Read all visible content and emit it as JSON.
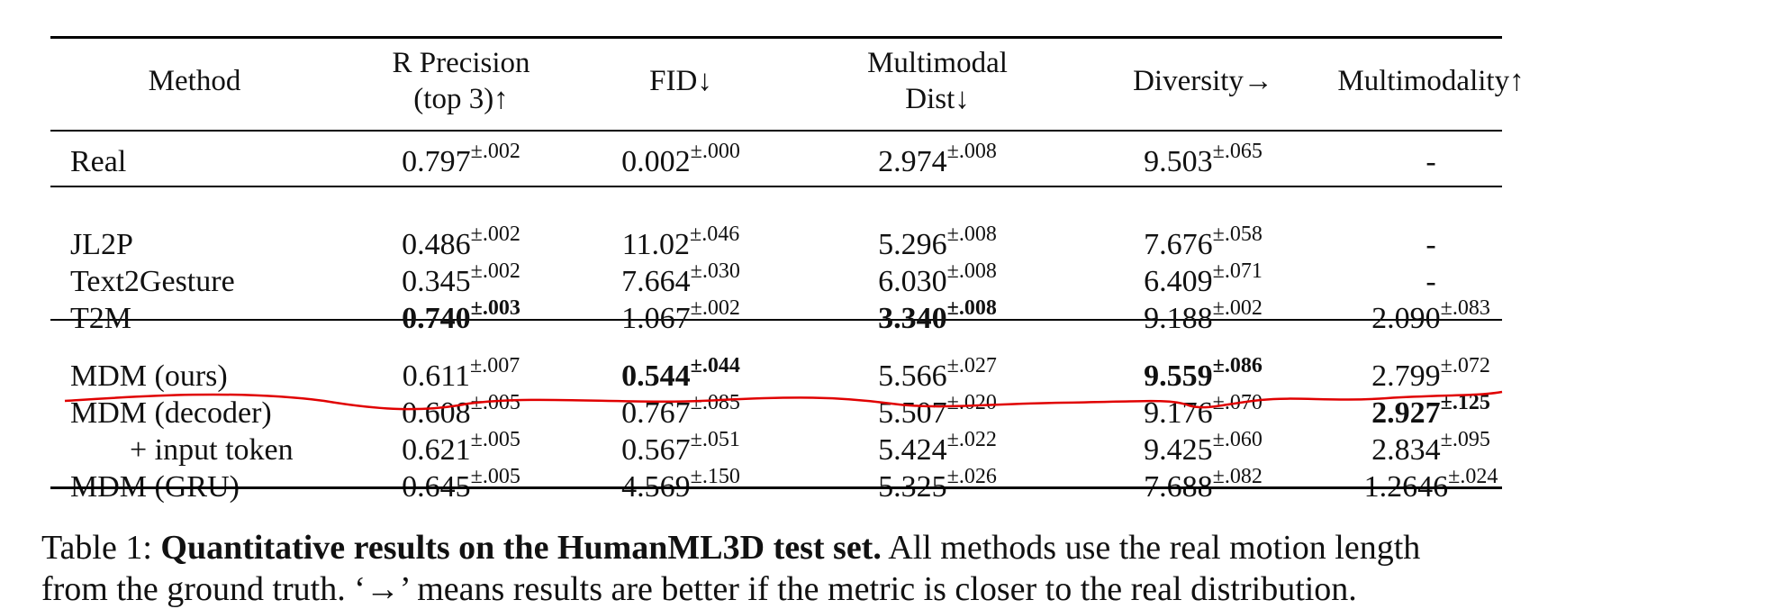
{
  "table": {
    "headers": [
      {
        "line1": "Method",
        "line2": ""
      },
      {
        "line1": "R Precision",
        "line2": "(top 3)↑"
      },
      {
        "line1": "FID↓",
        "line2": ""
      },
      {
        "line1": "Multimodal",
        "line2": "Dist↓"
      },
      {
        "line1": "Diversity→",
        "line2": ""
      },
      {
        "line1": "Multimodality↑",
        "line2": ""
      }
    ],
    "rows": [
      {
        "method": "Real",
        "cells": [
          {
            "v": "0.797",
            "pm": "±.002"
          },
          {
            "v": "0.002",
            "pm": "±.000"
          },
          {
            "v": "2.974",
            "pm": "±.008"
          },
          {
            "v": "9.503",
            "pm": "±.065"
          },
          {
            "v": "-",
            "pm": ""
          }
        ]
      },
      {
        "method": "JL2P",
        "cells": [
          {
            "v": "0.486",
            "pm": "±.002"
          },
          {
            "v": "11.02",
            "pm": "±.046"
          },
          {
            "v": "5.296",
            "pm": "±.008"
          },
          {
            "v": "7.676",
            "pm": "±.058"
          },
          {
            "v": "-",
            "pm": ""
          }
        ]
      },
      {
        "method": "Text2Gesture",
        "cells": [
          {
            "v": "0.345",
            "pm": "±.002"
          },
          {
            "v": "7.664",
            "pm": "±.030"
          },
          {
            "v": "6.030",
            "pm": "±.008"
          },
          {
            "v": "6.409",
            "pm": "±.071"
          },
          {
            "v": "-",
            "pm": ""
          }
        ]
      },
      {
        "method": "T2M",
        "cells": [
          {
            "v": "0.740",
            "pm": "±.003",
            "bold": true
          },
          {
            "v": "1.067",
            "pm": "±.002"
          },
          {
            "v": "3.340",
            "pm": "±.008",
            "bold": true
          },
          {
            "v": "9.188",
            "pm": "±.002"
          },
          {
            "v": "2.090",
            "pm": "±.083"
          }
        ]
      },
      {
        "method": "MDM (ours)",
        "cells": [
          {
            "v": "0.611",
            "pm": "±.007"
          },
          {
            "v": "0.544",
            "pm": "±.044",
            "bold": true
          },
          {
            "v": "5.566",
            "pm": "±.027"
          },
          {
            "v": "9.559",
            "pm": "±.086",
            "bold": true
          },
          {
            "v": "2.799",
            "pm": "±.072"
          }
        ]
      },
      {
        "method": "MDM (decoder)",
        "cells": [
          {
            "v": "0.608",
            "pm": "±.005"
          },
          {
            "v": "0.767",
            "pm": "±.085"
          },
          {
            "v": "5.507",
            "pm": "±.020"
          },
          {
            "v": "9.176",
            "pm": "±.070"
          },
          {
            "v": "2.927",
            "pm": "±.125",
            "bold": true
          }
        ]
      },
      {
        "method": "+ input token",
        "cells": [
          {
            "v": "0.621",
            "pm": "±.005"
          },
          {
            "v": "0.567",
            "pm": "±.051"
          },
          {
            "v": "5.424",
            "pm": "±.022"
          },
          {
            "v": "9.425",
            "pm": "±.060"
          },
          {
            "v": "2.834",
            "pm": "±.095"
          }
        ]
      },
      {
        "method": "MDM (GRU)",
        "cells": [
          {
            "v": "0.645",
            "pm": "±.005"
          },
          {
            "v": "4.569",
            "pm": "±.150"
          },
          {
            "v": "5.325",
            "pm": "±.026"
          },
          {
            "v": "7.688",
            "pm": "±.082"
          },
          {
            "v": "1.2646",
            "pm": "±.024"
          }
        ]
      }
    ]
  },
  "caption": {
    "prefix": "Table 1: ",
    "bold": "Quantitative results on the HumanML3D test set.",
    "rest": " All methods use the real motion length",
    "line2": "from the ground truth. ‘→’ means results are better if the metric is closer to the real distribution."
  },
  "annotation_color": "#e00000"
}
